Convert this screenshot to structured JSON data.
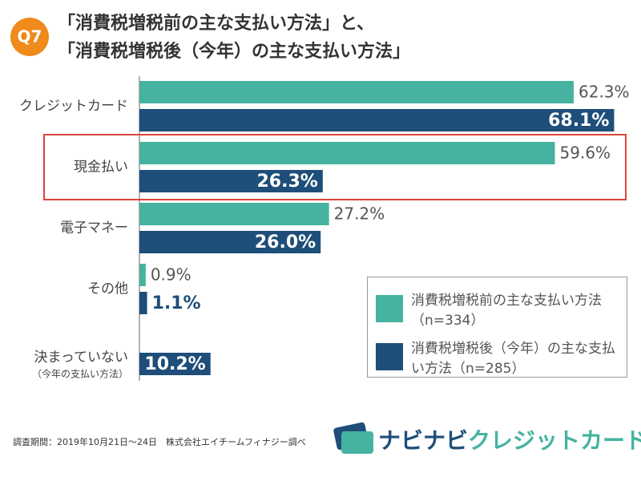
{
  "badge": "Q7",
  "chart_data": {
    "type": "hbar",
    "title": [
      "「消費税増税前の主な支払い方法」と、",
      "「消費税増税後（今年）の主な支払い方法」"
    ],
    "categories": [
      "クレジットカード",
      "現金払い",
      "電子マネー",
      "その他",
      "決まっていない"
    ],
    "category_sublabels": [
      null,
      null,
      null,
      null,
      "（今年の支払い方法）"
    ],
    "series": [
      {
        "name": "消費税増税前の主な支払い方法（n=334）",
        "color": "#45b3a0",
        "values": [
          62.3,
          59.6,
          27.2,
          0.9,
          null
        ],
        "value_labels": [
          "62.3%",
          "59.6%",
          "27.2%",
          "0.9%",
          null
        ]
      },
      {
        "name": "消費税増税後（今年）の主な支払い方法（n=285）",
        "color": "#1e4e79",
        "values": [
          68.1,
          26.3,
          26.0,
          1.1,
          10.2
        ],
        "value_labels": [
          "68.1%",
          "26.3%",
          "26.0%",
          "1.1%",
          "10.2%"
        ]
      }
    ],
    "xlim": [
      0,
      70
    ],
    "highlight_index": 1,
    "legend": "lower right"
  },
  "footer": {
    "note": "調査期間：2019年10月21日〜24日　株式会社エイチームフィナジー調べ",
    "brand": [
      "ナビナビ",
      "クレジットカード"
    ]
  }
}
